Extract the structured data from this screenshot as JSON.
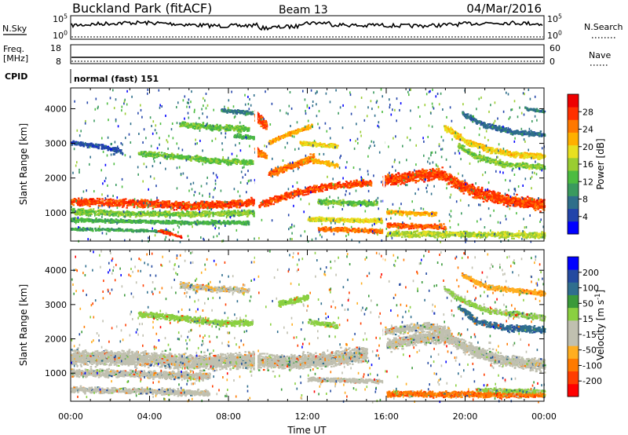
{
  "header": {
    "site": "Buckland Park (fitACF)",
    "beam": "Beam 13",
    "date": "04/Mar/2016"
  },
  "status_panels": {
    "nsky": {
      "label": "N.Sky",
      "ticks": [
        "10^5",
        "10^0"
      ]
    },
    "nsearch": {
      "label": "N.Search",
      "ticks": [
        "10^5",
        "10^0"
      ]
    },
    "freq": {
      "label_top": "Freq.",
      "label_unit": "[MHz]",
      "ticks": [
        "18",
        "8"
      ]
    },
    "nave": {
      "label": "Nave",
      "ticks": [
        "60",
        "0"
      ]
    },
    "cpid": {
      "label": "CPID",
      "value": "normal (fast) 151"
    }
  },
  "chart_data": [
    {
      "type": "heatmap",
      "name": "power-panel",
      "ylabel": "Slant Range [km]",
      "xlabel": "",
      "x_tick_labels": [
        "00:00",
        "04:00",
        "08:00",
        "12:00",
        "16:00",
        "20:00",
        "00:00"
      ],
      "y_ticks": [
        1000,
        2000,
        3000,
        4000
      ],
      "ylim": [
        180,
        4600
      ],
      "xlim_hours": [
        0,
        24
      ],
      "colorbar": {
        "label": "Power [dB]",
        "ticks": [
          "28",
          "24",
          "20",
          "16",
          "12",
          "8",
          "4"
        ],
        "range": [
          0,
          32
        ],
        "colors": [
          "#0000ff",
          "#2244aa",
          "#2e6e8a",
          "#3a9a5e",
          "#4cbc40",
          "#9acd32",
          "#e8e020",
          "#ffb000",
          "#ff7800",
          "#ff3000",
          "#ee0000"
        ]
      },
      "bands": [
        {
          "pts": [
            [
              0,
              1300
            ],
            [
              4,
              1250
            ],
            [
              6,
              1180
            ],
            [
              8,
              1230
            ],
            [
              9.3,
              1300
            ]
          ],
          "width": 150,
          "value": 27
        },
        {
          "pts": [
            [
              0,
              1020
            ],
            [
              3,
              960
            ],
            [
              6,
              940
            ],
            [
              9.3,
              980
            ]
          ],
          "width": 110,
          "value": 15
        },
        {
          "pts": [
            [
              0,
              780
            ],
            [
              3,
              740
            ],
            [
              6,
              700
            ],
            [
              9,
              700
            ]
          ],
          "width": 80,
          "value": 12
        },
        {
          "pts": [
            [
              0,
              520
            ],
            [
              3,
              480
            ],
            [
              5,
              440
            ]
          ],
          "width": 60,
          "value": 11
        },
        {
          "pts": [
            [
              4.4,
              480
            ],
            [
              5.6,
              280
            ]
          ],
          "width": 60,
          "value": 28
        },
        {
          "pts": [
            [
              0,
              3000
            ],
            [
              1.5,
              2900
            ],
            [
              2.6,
              2750
            ]
          ],
          "width": 90,
          "value": 5
        },
        {
          "pts": [
            [
              3.4,
              2700
            ],
            [
              5.5,
              2600
            ],
            [
              7.5,
              2470
            ],
            [
              9.2,
              2450
            ]
          ],
          "width": 110,
          "value": 14
        },
        {
          "pts": [
            [
              5.5,
              3550
            ],
            [
              7,
              3450
            ],
            [
              9,
              3400
            ]
          ],
          "width": 120,
          "value": 14
        },
        {
          "pts": [
            [
              7.6,
              3950
            ],
            [
              9.2,
              3850
            ]
          ],
          "width": 80,
          "value": 8
        },
        {
          "pts": [
            [
              8.2,
              3200
            ],
            [
              9.3,
              3150
            ]
          ],
          "width": 90,
          "value": 12
        },
        {
          "pts": [
            [
              9.3,
              3800
            ],
            [
              9.9,
              3500
            ]
          ],
          "width": 200,
          "value": 27
        },
        {
          "pts": [
            [
              9.3,
              2800
            ],
            [
              9.9,
              2600
            ]
          ],
          "width": 140,
          "value": 25
        },
        {
          "pts": [
            [
              9.5,
              1200
            ],
            [
              11,
              1500
            ],
            [
              13,
              1750
            ],
            [
              15.2,
              1850
            ]
          ],
          "width": 130,
          "value": 27
        },
        {
          "pts": [
            [
              10,
              2100
            ],
            [
              11.5,
              2400
            ],
            [
              12.3,
              2600
            ]
          ],
          "width": 140,
          "value": 25
        },
        {
          "pts": [
            [
              10,
              3000
            ],
            [
              11.2,
              3300
            ],
            [
              12.2,
              3500
            ]
          ],
          "width": 90,
          "value": 22
        },
        {
          "pts": [
            [
              11.6,
              3000
            ],
            [
              13.5,
              2900
            ]
          ],
          "width": 90,
          "value": 19
        },
        {
          "pts": [
            [
              12.2,
              2500
            ],
            [
              13.5,
              2350
            ]
          ],
          "width": 90,
          "value": 22
        },
        {
          "pts": [
            [
              12.5,
              1300
            ],
            [
              15.5,
              1250
            ]
          ],
          "width": 100,
          "value": 14
        },
        {
          "pts": [
            [
              12,
              800
            ],
            [
              15.8,
              750
            ]
          ],
          "width": 90,
          "value": 19
        },
        {
          "pts": [
            [
              12.5,
              520
            ],
            [
              15.8,
              450
            ]
          ],
          "width": 90,
          "value": 25
        },
        {
          "pts": [
            [
              15.8,
              1900
            ],
            [
              17.5,
              2050
            ],
            [
              18.8,
              2100
            ],
            [
              19.6,
              1800
            ],
            [
              20.6,
              1550
            ],
            [
              22,
              1350
            ],
            [
              24,
              1200
            ]
          ],
          "width": 220,
          "value": 27
        },
        {
          "pts": [
            [
              16,
              1000
            ],
            [
              18.5,
              950
            ]
          ],
          "width": 90,
          "value": 22
        },
        {
          "pts": [
            [
              16,
              620
            ],
            [
              19,
              580
            ]
          ],
          "width": 100,
          "value": 26
        },
        {
          "pts": [
            [
              16,
              380
            ],
            [
              24,
              340
            ]
          ],
          "width": 120,
          "value": 17
        },
        {
          "pts": [
            [
              18.9,
              3450
            ],
            [
              20,
              3050
            ],
            [
              21.2,
              2800
            ],
            [
              22.5,
              2650
            ],
            [
              24,
              2600
            ]
          ],
          "width": 120,
          "value": 20
        },
        {
          "pts": [
            [
              19.6,
              2950
            ],
            [
              20.5,
              2600
            ],
            [
              22,
              2380
            ],
            [
              24,
              2300
            ]
          ],
          "width": 110,
          "value": 15
        },
        {
          "pts": [
            [
              19.8,
              3850
            ],
            [
              21,
              3500
            ],
            [
              22.5,
              3300
            ],
            [
              24,
              3250
            ]
          ],
          "width": 100,
          "value": 7
        },
        {
          "pts": [
            [
              23,
              4000
            ],
            [
              24,
              3900
            ]
          ],
          "width": 60,
          "value": 8
        }
      ]
    },
    {
      "type": "heatmap",
      "name": "velocity-panel",
      "ylabel": "Slant Range [km]",
      "xlabel": "Time UT",
      "x_tick_labels": [
        "00:00",
        "04:00",
        "08:00",
        "12:00",
        "16:00",
        "20:00",
        "00:00"
      ],
      "y_ticks": [
        1000,
        2000,
        3000,
        4000
      ],
      "ylim": [
        180,
        4600
      ],
      "xlim_hours": [
        0,
        24
      ],
      "colorbar": {
        "label": "Velocity [m s^-1]",
        "ticks": [
          "200",
          "100",
          "50",
          "15",
          "-15",
          "-50",
          "-100",
          "-200"
        ],
        "range": [
          -250,
          250
        ],
        "colors": [
          "#ff0000",
          "#ff3d00",
          "#ff7a00",
          "#ffae20",
          "#c0c0b0",
          "#c0c0b0",
          "#8ad040",
          "#3a9a3a",
          "#2f6e8e",
          "#244aa0",
          "#0000ff"
        ]
      },
      "bands": [
        {
          "pts": [
            [
              0,
              1450
            ],
            [
              4,
              1400
            ],
            [
              6,
              1300
            ],
            [
              9,
              1350
            ],
            [
              11,
              1300
            ],
            [
              13,
              1400
            ],
            [
              15,
              1550
            ]
          ],
          "width": 300,
          "value": 0
        },
        {
          "pts": [
            [
              0,
              1000
            ],
            [
              4,
              950
            ],
            [
              7,
              900
            ]
          ],
          "width": 150,
          "value": 0
        },
        {
          "pts": [
            [
              0,
              500
            ],
            [
              4,
              450
            ],
            [
              7,
              400
            ]
          ],
          "width": 120,
          "value": 0
        },
        {
          "pts": [
            [
              12,
              800
            ],
            [
              15.8,
              750
            ]
          ],
          "width": 90,
          "value": 0
        },
        {
          "pts": [
            [
              16,
              1800
            ],
            [
              17.5,
              2000
            ],
            [
              19,
              2050
            ],
            [
              20.5,
              1600
            ],
            [
              22,
              1350
            ],
            [
              24,
              1200
            ]
          ],
          "width": 240,
          "value": 0
        },
        {
          "pts": [
            [
              15.8,
              2200
            ],
            [
              18,
              2350
            ],
            [
              19.2,
              2200
            ]
          ],
          "width": 150,
          "value": 0
        },
        {
          "pts": [
            [
              16,
              380
            ],
            [
              24,
              350
            ]
          ],
          "width": 120,
          "value": -150
        },
        {
          "pts": [
            [
              3.4,
              2700
            ],
            [
              5.5,
              2600
            ],
            [
              7.5,
              2450
            ],
            [
              9.2,
              2450
            ]
          ],
          "width": 120,
          "value": 40
        },
        {
          "pts": [
            [
              5.5,
              3550
            ],
            [
              7,
              3450
            ],
            [
              9,
              3400
            ]
          ],
          "width": 120,
          "value": -60
        },
        {
          "pts": [
            [
              10.5,
              3000
            ],
            [
              12,
              3200
            ]
          ],
          "width": 120,
          "value": 40
        },
        {
          "pts": [
            [
              12,
              2500
            ],
            [
              13.5,
              2350
            ]
          ],
          "width": 100,
          "value": 40
        },
        {
          "pts": [
            [
              18.9,
              3450
            ],
            [
              20,
              3050
            ],
            [
              21.2,
              2800
            ],
            [
              24,
              2600
            ]
          ],
          "width": 110,
          "value": 30
        },
        {
          "pts": [
            [
              19.6,
              2950
            ],
            [
              20.5,
              2500
            ],
            [
              22,
              2300
            ],
            [
              24,
              2250
            ]
          ],
          "width": 130,
          "value": 150
        },
        {
          "pts": [
            [
              19.8,
              3850
            ],
            [
              21,
              3500
            ],
            [
              24,
              3300
            ]
          ],
          "width": 100,
          "value": -100
        },
        {
          "pts": [
            [
              20.5,
              500
            ],
            [
              24,
              450
            ]
          ],
          "width": 80,
          "value": 35
        }
      ]
    }
  ]
}
